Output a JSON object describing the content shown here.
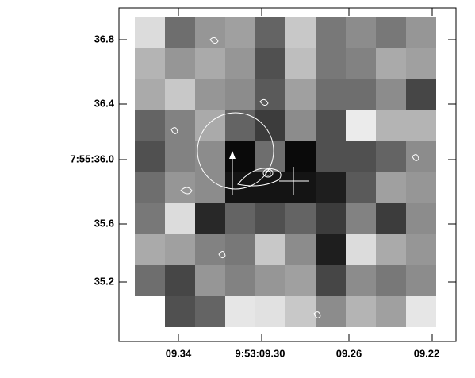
{
  "axes": {
    "x_ticks": [
      "09.34",
      "9:53:09.30",
      "09.26",
      "09.22"
    ],
    "y_ticks": [
      "36.8",
      "36.4",
      "7:55:36.0",
      "35.6",
      "35.2"
    ]
  }
}
